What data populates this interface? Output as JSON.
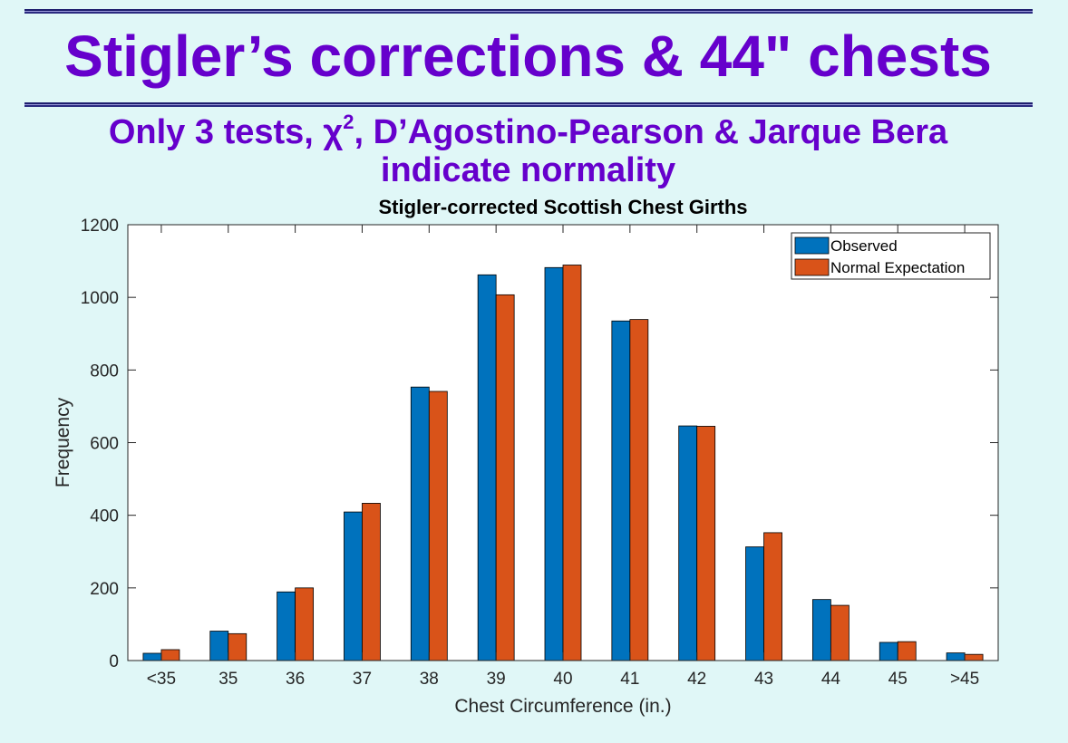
{
  "slide": {
    "title": "Stigler’s corrections & 44\" chests",
    "subtitle_part1": "Only 3 tests, χ",
    "subtitle_sup": "2",
    "subtitle_part2": ", D’Agostino-Pearson & Jarque Bera",
    "subtitle_line2": "indicate normality"
  },
  "colors": {
    "background": "#e0f7f7",
    "title": "#6600cc",
    "observed": "#0072bd",
    "expected": "#d95319"
  },
  "chart_data": {
    "type": "bar",
    "title": "Stigler-corrected Scottish Chest Girths",
    "xlabel": "Chest Circumference (in.)",
    "ylabel": "Frequency",
    "ylim": [
      0,
      1200
    ],
    "yticks": [
      0,
      200,
      400,
      600,
      800,
      1000,
      1200
    ],
    "grid": false,
    "legend_position": "top-right",
    "categories": [
      "<35",
      "35",
      "36",
      "37",
      "38",
      "39",
      "40",
      "41",
      "42",
      "43",
      "44",
      "45",
      ">45"
    ],
    "series": [
      {
        "name": "Observed",
        "values": [
          20,
          81,
          189,
          409,
          753,
          1062,
          1082,
          935,
          646,
          313,
          168,
          50,
          21
        ]
      },
      {
        "name": "Normal Expectation",
        "values": [
          30,
          74,
          200,
          433,
          741,
          1007,
          1089,
          939,
          645,
          352,
          152,
          52,
          17
        ]
      }
    ]
  }
}
